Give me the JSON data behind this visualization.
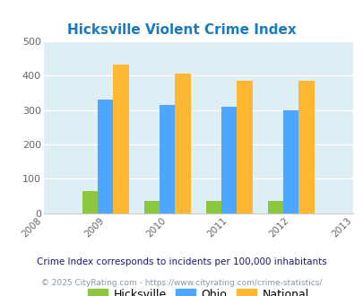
{
  "title": "Hicksville Violent Crime Index",
  "title_color": "#1a7abf",
  "years": [
    2009,
    2010,
    2011,
    2012
  ],
  "xlim": [
    2008,
    2013
  ],
  "ylim": [
    0,
    500
  ],
  "yticks": [
    0,
    100,
    200,
    300,
    400,
    500
  ],
  "hicksville": [
    63,
    35,
    35,
    35
  ],
  "ohio": [
    330,
    315,
    310,
    300
  ],
  "national": [
    432,
    406,
    385,
    385
  ],
  "hicksville_color": "#8dc63f",
  "ohio_color": "#4da6ff",
  "national_color": "#ffb732",
  "bg_color": "#ddeef4",
  "bar_width": 0.25,
  "legend_labels": [
    "Hicksville",
    "Ohio",
    "National"
  ],
  "footnote1": "Crime Index corresponds to incidents per 100,000 inhabitants",
  "footnote2": "© 2025 CityRating.com - https://www.cityrating.com/crime-statistics/",
  "footnote1_color": "#1a1a6e",
  "footnote2_color": "#8899aa"
}
